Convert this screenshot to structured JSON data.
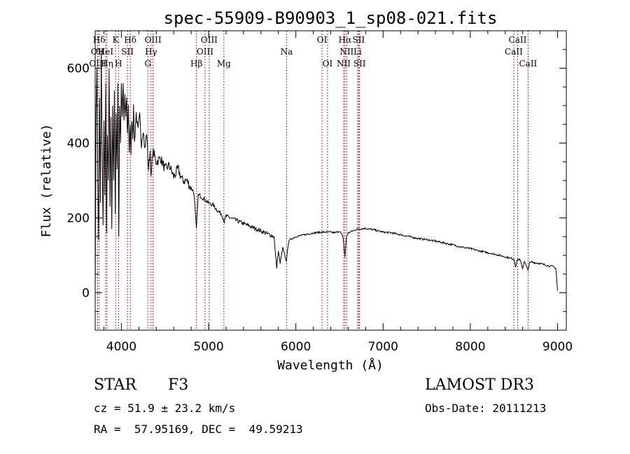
{
  "chart_data": {
    "type": "line",
    "title": "spec-55909-B90903_1_sp08-021.fits",
    "xlabel": "Wavelength (Å)",
    "ylabel": "Flux (relative)",
    "xlim": [
      3700,
      9100
    ],
    "ylim": [
      -100,
      700
    ],
    "xticks": [
      4000,
      5000,
      6000,
      7000,
      8000,
      9000
    ],
    "yticks": [
      0,
      200,
      400,
      600
    ],
    "series": [
      {
        "name": "spectrum",
        "anchors": [
          [
            3700,
            0
          ],
          [
            3710,
            480
          ],
          [
            3720,
            600
          ],
          [
            3730,
            300
          ],
          [
            3740,
            140
          ],
          [
            3750,
            520
          ],
          [
            3760,
            240
          ],
          [
            3770,
            650
          ],
          [
            3780,
            380
          ],
          [
            3790,
            180
          ],
          [
            3800,
            460
          ],
          [
            3810,
            260
          ],
          [
            3820,
            560
          ],
          [
            3830,
            160
          ],
          [
            3840,
            420
          ],
          [
            3850,
            300
          ],
          [
            3860,
            600
          ],
          [
            3870,
            230
          ],
          [
            3880,
            470
          ],
          [
            3890,
            170
          ],
          [
            3900,
            500
          ],
          [
            3910,
            300
          ],
          [
            3920,
            540
          ],
          [
            3930,
            210
          ],
          [
            3940,
            480
          ],
          [
            3950,
            330
          ],
          [
            3960,
            560
          ],
          [
            3970,
            150
          ],
          [
            3980,
            500
          ],
          [
            3990,
            400
          ],
          [
            4000,
            560
          ],
          [
            4010,
            470
          ],
          [
            4020,
            560
          ],
          [
            4030,
            460
          ],
          [
            4040,
            530
          ],
          [
            4050,
            470
          ],
          [
            4060,
            510
          ],
          [
            4070,
            420
          ],
          [
            4080,
            500
          ],
          [
            4090,
            380
          ],
          [
            4100,
            440
          ],
          [
            4110,
            380
          ],
          [
            4120,
            470
          ],
          [
            4130,
            420
          ],
          [
            4140,
            490
          ],
          [
            4150,
            400
          ],
          [
            4170,
            480
          ],
          [
            4190,
            430
          ],
          [
            4210,
            470
          ],
          [
            4230,
            400
          ],
          [
            4250,
            440
          ],
          [
            4270,
            380
          ],
          [
            4290,
            430
          ],
          [
            4310,
            330
          ],
          [
            4330,
            380
          ],
          [
            4340,
            300
          ],
          [
            4360,
            380
          ],
          [
            4400,
            350
          ],
          [
            4450,
            360
          ],
          [
            4500,
            330
          ],
          [
            4550,
            340
          ],
          [
            4600,
            310
          ],
          [
            4650,
            330
          ],
          [
            4700,
            300
          ],
          [
            4750,
            300
          ],
          [
            4800,
            280
          ],
          [
            4830,
            270
          ],
          [
            4860,
            170
          ],
          [
            4880,
            260
          ],
          [
            4900,
            260
          ],
          [
            4950,
            250
          ],
          [
            5000,
            240
          ],
          [
            5050,
            235
          ],
          [
            5100,
            220
          ],
          [
            5150,
            210
          ],
          [
            5180,
            190
          ],
          [
            5200,
            205
          ],
          [
            5300,
            195
          ],
          [
            5400,
            185
          ],
          [
            5500,
            175
          ],
          [
            5600,
            165
          ],
          [
            5700,
            155
          ],
          [
            5750,
            150
          ],
          [
            5760,
            120
          ],
          [
            5780,
            70
          ],
          [
            5800,
            110
          ],
          [
            5820,
            80
          ],
          [
            5850,
            120
          ],
          [
            5890,
            85
          ],
          [
            5920,
            140
          ],
          [
            6000,
            150
          ],
          [
            6100,
            155
          ],
          [
            6200,
            160
          ],
          [
            6300,
            162
          ],
          [
            6400,
            162
          ],
          [
            6450,
            160
          ],
          [
            6500,
            165
          ],
          [
            6540,
            150
          ],
          [
            6563,
            95
          ],
          [
            6580,
            150
          ],
          [
            6600,
            160
          ],
          [
            6700,
            170
          ],
          [
            6800,
            172
          ],
          [
            6900,
            168
          ],
          [
            7000,
            162
          ],
          [
            7100,
            160
          ],
          [
            7200,
            155
          ],
          [
            7300,
            150
          ],
          [
            7400,
            145
          ],
          [
            7500,
            142
          ],
          [
            7600,
            138
          ],
          [
            7700,
            133
          ],
          [
            7800,
            128
          ],
          [
            7900,
            122
          ],
          [
            8000,
            118
          ],
          [
            8100,
            112
          ],
          [
            8200,
            107
          ],
          [
            8300,
            102
          ],
          [
            8400,
            96
          ],
          [
            8500,
            90
          ],
          [
            8520,
            70
          ],
          [
            8540,
            90
          ],
          [
            8570,
            88
          ],
          [
            8600,
            65
          ],
          [
            8620,
            85
          ],
          [
            8660,
            60
          ],
          [
            8680,
            80
          ],
          [
            8700,
            82
          ],
          [
            8800,
            78
          ],
          [
            8900,
            72
          ],
          [
            8950,
            70
          ],
          [
            8980,
            65
          ],
          [
            9000,
            5
          ]
        ]
      }
    ],
    "line_markers": [
      {
        "name": "Hδ",
        "wavelength": 3745,
        "row": 1
      },
      {
        "name": "OII",
        "wavelength": 3727,
        "row": 2
      },
      {
        "name": "OIII",
        "wavelength": 3727,
        "row": 3
      },
      {
        "name": "HeI",
        "wavelength": 3820,
        "row": 2
      },
      {
        "name": "Hη",
        "wavelength": 3835,
        "row": 3
      },
      {
        "name": "K",
        "wavelength": 3934,
        "row": 1
      },
      {
        "name": "SII",
        "wavelength": 4070,
        "row": 2
      },
      {
        "name": "H",
        "wavelength": 3968,
        "row": 3
      },
      {
        "name": "Hδ",
        "wavelength": 4102,
        "row": 1
      },
      {
        "name": "OIII",
        "wavelength": 4363,
        "row": 1
      },
      {
        "name": "Hγ",
        "wavelength": 4340,
        "row": 2
      },
      {
        "name": "G",
        "wavelength": 4304,
        "row": 3
      },
      {
        "name": "OIII",
        "wavelength": 5007,
        "row": 1
      },
      {
        "name": "OIII",
        "wavelength": 4959,
        "row": 2
      },
      {
        "name": "Hβ",
        "wavelength": 4861,
        "row": 3
      },
      {
        "name": "Mg",
        "wavelength": 5175,
        "row": 3
      },
      {
        "name": "Na",
        "wavelength": 5894,
        "row": 2
      },
      {
        "name": "OI",
        "wavelength": 6300,
        "row": 1
      },
      {
        "name": "OI",
        "wavelength": 6363,
        "row": 3
      },
      {
        "name": "Hα",
        "wavelength": 6563,
        "row": 1
      },
      {
        "name": "SII",
        "wavelength": 6720,
        "row": 1
      },
      {
        "name": "NII",
        "wavelength": 6583,
        "row": 2
      },
      {
        "name": "Li",
        "wavelength": 6708,
        "row": 2
      },
      {
        "name": "NII",
        "wavelength": 6548,
        "row": 3
      },
      {
        "name": "SII",
        "wavelength": 6731,
        "row": 3
      },
      {
        "name": "CaII",
        "wavelength": 8542,
        "row": 1
      },
      {
        "name": "CaII",
        "wavelength": 8498,
        "row": 2
      },
      {
        "name": "CaII",
        "wavelength": 8662,
        "row": 3
      }
    ],
    "marker_color": "#cc2222"
  },
  "info": {
    "class": "STAR",
    "subclass": "F3",
    "survey": "LAMOST DR3",
    "cz": "cz = 51.9 ± 23.2 km/s",
    "obs_date": "Obs-Date: 20111213",
    "coords": "RA =  57.95169, DEC =  49.59213"
  }
}
